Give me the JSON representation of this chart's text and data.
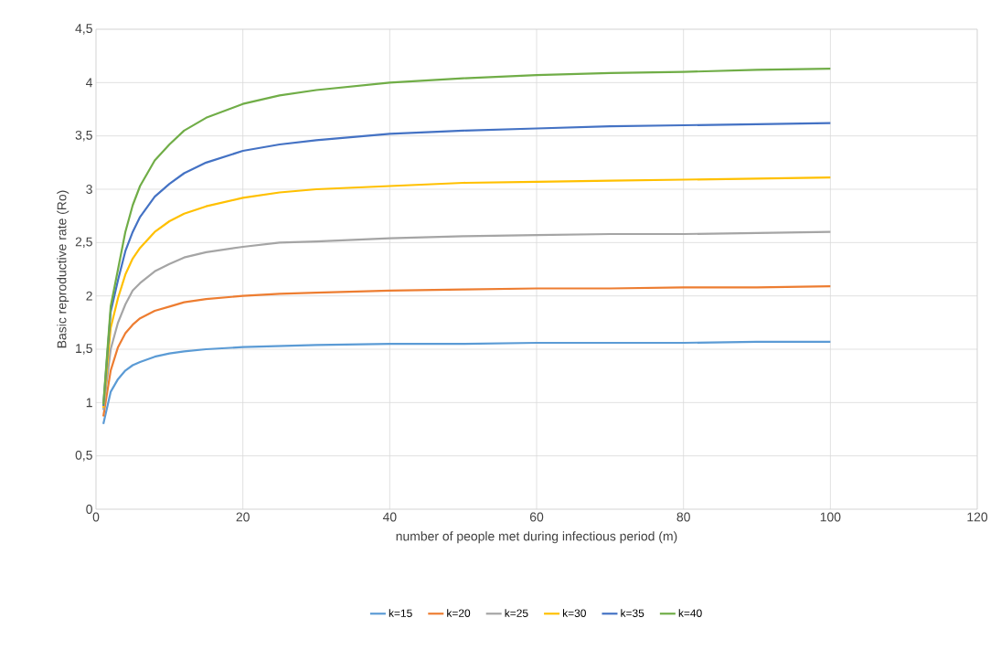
{
  "chart_data": {
    "type": "line",
    "xlabel": "number of people met during infectious period (m)",
    "ylabel": "Basic reproductive rate (Ro)",
    "x": [
      1,
      2,
      3,
      4,
      5,
      6,
      8,
      10,
      12,
      15,
      20,
      25,
      30,
      40,
      50,
      60,
      70,
      80,
      90,
      100
    ],
    "series": [
      {
        "name": "k=15",
        "color": "#5b9bd5",
        "values": [
          0.8,
          1.1,
          1.22,
          1.3,
          1.35,
          1.38,
          1.43,
          1.46,
          1.48,
          1.5,
          1.52,
          1.53,
          1.54,
          1.55,
          1.55,
          1.56,
          1.56,
          1.56,
          1.57,
          1.57
        ]
      },
      {
        "name": "k=20",
        "color": "#ed7d31",
        "values": [
          0.87,
          1.3,
          1.52,
          1.65,
          1.73,
          1.79,
          1.86,
          1.9,
          1.94,
          1.97,
          2.0,
          2.02,
          2.03,
          2.05,
          2.06,
          2.07,
          2.07,
          2.08,
          2.08,
          2.09
        ]
      },
      {
        "name": "k=25",
        "color": "#a5a5a5",
        "values": [
          0.93,
          1.5,
          1.75,
          1.92,
          2.05,
          2.12,
          2.23,
          2.3,
          2.36,
          2.41,
          2.46,
          2.5,
          2.51,
          2.54,
          2.56,
          2.57,
          2.58,
          2.58,
          2.59,
          2.6
        ]
      },
      {
        "name": "k=30",
        "color": "#ffc000",
        "values": [
          0.95,
          1.7,
          1.98,
          2.2,
          2.35,
          2.45,
          2.6,
          2.7,
          2.77,
          2.84,
          2.92,
          2.97,
          3.0,
          3.03,
          3.06,
          3.07,
          3.08,
          3.09,
          3.1,
          3.11
        ]
      },
      {
        "name": "k=35",
        "color": "#4472c4",
        "values": [
          0.97,
          1.85,
          2.15,
          2.42,
          2.6,
          2.74,
          2.93,
          3.05,
          3.15,
          3.25,
          3.36,
          3.42,
          3.46,
          3.52,
          3.55,
          3.57,
          3.59,
          3.6,
          3.61,
          3.62
        ]
      },
      {
        "name": "k=40",
        "color": "#70ad47",
        "values": [
          0.98,
          1.9,
          2.25,
          2.6,
          2.85,
          3.03,
          3.27,
          3.42,
          3.55,
          3.67,
          3.8,
          3.88,
          3.93,
          4.0,
          4.04,
          4.07,
          4.09,
          4.1,
          4.12,
          4.13
        ]
      }
    ],
    "xlim": [
      0,
      120
    ],
    "xticks": [
      0,
      20,
      40,
      60,
      80,
      100,
      120
    ],
    "ylim": [
      0,
      4.5
    ],
    "yticks": [
      0,
      {
        "value": 0.5,
        "label": "0,5"
      },
      1,
      {
        "value": 1.5,
        "label": "1,5"
      },
      2,
      {
        "value": 2.5,
        "label": "2,5"
      },
      3,
      {
        "value": 3.5,
        "label": "3,5"
      },
      4,
      {
        "value": 4.5,
        "label": "4,5"
      }
    ],
    "grid": true,
    "legend": "bottom",
    "marker": "none",
    "line_style": "solid"
  }
}
